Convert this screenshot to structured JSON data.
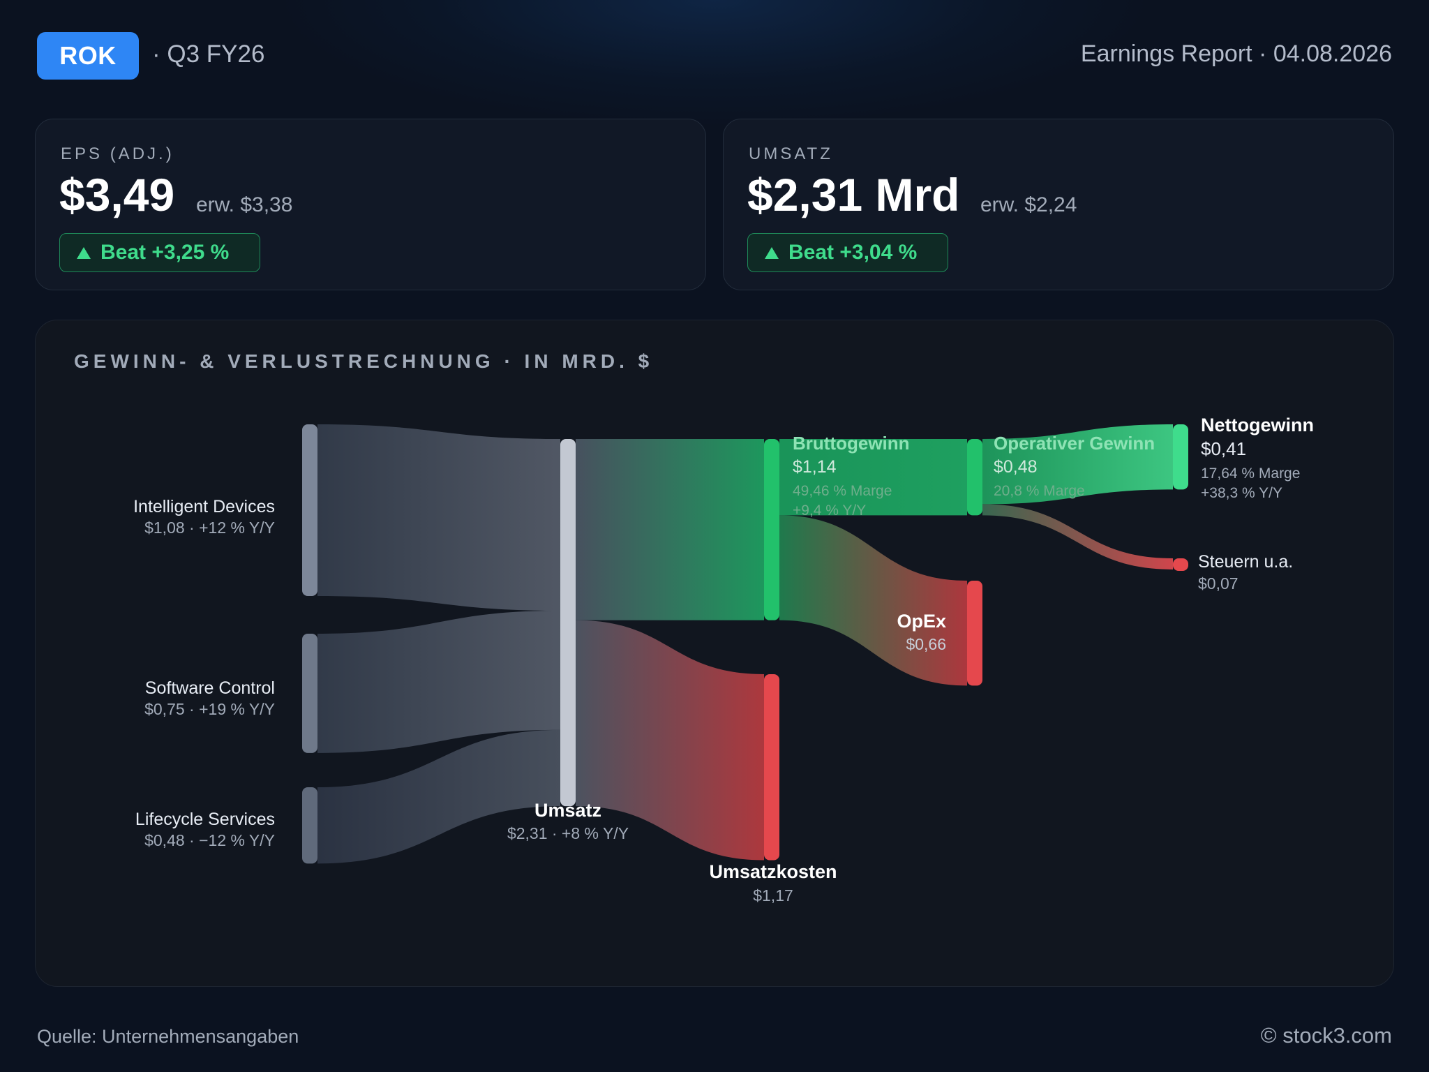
{
  "header": {
    "ticker": "ROK",
    "quarter": "· Q3 FY26",
    "report": "Earnings Report · 04.08.2026"
  },
  "cards": {
    "eps": {
      "label": "EPS (ADJ.)",
      "value": "$3,49",
      "estimate": "erw. $3,38",
      "badge": "Beat +3,25 %"
    },
    "revenue": {
      "label": "UMSATZ",
      "value": "$2,31 Mrd",
      "estimate": "erw. $2,24",
      "badge": "Beat +3,04 %"
    }
  },
  "colors": {
    "accent": "#2e86f5",
    "profit": "#22c16b",
    "cost": "#e5484d",
    "segment": "#7d8799",
    "total": "#c3c8d2"
  },
  "chart_data": {
    "type": "sankey",
    "title": "GEWINN- & VERLUSTRECHNUNG · IN MRD. $",
    "nodes": [
      {
        "id": "id",
        "name": "Intelligent Devices",
        "value": 1.08,
        "label": "$1,08 · +12 % Y/Y"
      },
      {
        "id": "sc",
        "name": "Software Control",
        "value": 0.75,
        "label": "$0,75 · +19 % Y/Y"
      },
      {
        "id": "ls",
        "name": "Lifecycle Services",
        "value": 0.48,
        "label": "$0,48 · −12 % Y/Y"
      },
      {
        "id": "rev",
        "name": "Umsatz",
        "value": 2.31,
        "label": "$2,31 · +8 % Y/Y"
      },
      {
        "id": "gp",
        "name": "Bruttogewinn",
        "value": 1.14,
        "label": "$1,14",
        "sub": [
          "49,46 % Marge",
          "+9,4 % Y/Y"
        ]
      },
      {
        "id": "cogs",
        "name": "Umsatzkosten",
        "value": 1.17,
        "label": "$1,17"
      },
      {
        "id": "op",
        "name": "Operativer Gewinn",
        "value": 0.48,
        "label": "$0,48",
        "sub": [
          "20,8 % Marge"
        ]
      },
      {
        "id": "opex",
        "name": "OpEx",
        "value": 0.66,
        "label": "$0,66"
      },
      {
        "id": "net",
        "name": "Nettogewinn",
        "value": 0.41,
        "label": "$0,41",
        "sub": [
          "17,64 % Marge",
          "+38,3 % Y/Y"
        ]
      },
      {
        "id": "tax",
        "name": "Steuern u.a.",
        "value": 0.07,
        "label": "$0,07"
      }
    ],
    "links": [
      {
        "source": "id",
        "target": "rev",
        "value": 1.08
      },
      {
        "source": "sc",
        "target": "rev",
        "value": 0.75
      },
      {
        "source": "ls",
        "target": "rev",
        "value": 0.48
      },
      {
        "source": "rev",
        "target": "gp",
        "value": 1.14
      },
      {
        "source": "rev",
        "target": "cogs",
        "value": 1.17
      },
      {
        "source": "gp",
        "target": "op",
        "value": 0.48
      },
      {
        "source": "gp",
        "target": "opex",
        "value": 0.66
      },
      {
        "source": "op",
        "target": "net",
        "value": 0.41
      },
      {
        "source": "op",
        "target": "tax",
        "value": 0.07
      }
    ]
  },
  "footer": {
    "source": "Quelle: Unternehmensangaben",
    "copyright": "© stock3.com"
  }
}
